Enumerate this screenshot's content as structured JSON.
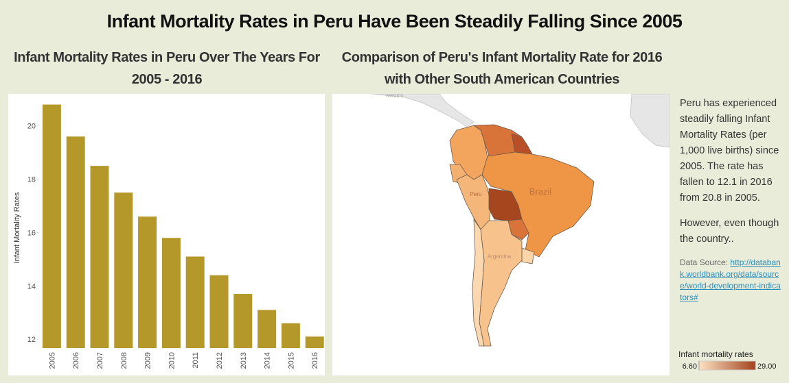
{
  "title": "Infant Mortality Rates in Peru Have Been Steadily Falling Since 2005",
  "chart_data": [
    {
      "type": "bar",
      "title": "Infant Mortality Rates in Peru Over The Years For 2005 - 2016",
      "y_label": "Infant Mortality Rates",
      "categories": [
        "2005",
        "2006",
        "2007",
        "2008",
        "2009",
        "2010",
        "2011",
        "2012",
        "2013",
        "2014",
        "2015",
        "2016"
      ],
      "values": [
        20.8,
        19.6,
        18.5,
        17.5,
        16.6,
        15.8,
        15.1,
        14.4,
        13.7,
        13.1,
        12.6,
        12.1
      ],
      "color": "#b5982a",
      "ylim": [
        11.67,
        21.2
      ],
      "yticks": [
        12,
        14,
        16,
        18,
        20
      ],
      "grid": false
    },
    {
      "type": "map",
      "title": "Comparison of Peru's Infant Mortality Rate for 2016 with Other South American Countries",
      "labels": [
        "Mexico",
        "Peru",
        "Brazil",
        "Argentina"
      ],
      "legend_title": "Infant mortality rates",
      "color_range": [
        {
          "value": 6.6,
          "label": "6.60"
        },
        {
          "value": 29,
          "label": "29.00"
        }
      ],
      "colors": [
        "#fde3c4",
        "#a3421d"
      ]
    }
  ],
  "text": {
    "paragraphs": [
      "Peru has experienced steadily falling Infant Mortality Rates (per 1,000 live births) since 2005. The rate has fallen to 12.1 in 2016 from 20.8  in 2005.",
      "However, even though the country.."
    ],
    "source_label": "Data Source:",
    "source_link": "http://databank.worldbank.org/data/source/world-development-indicators#"
  }
}
